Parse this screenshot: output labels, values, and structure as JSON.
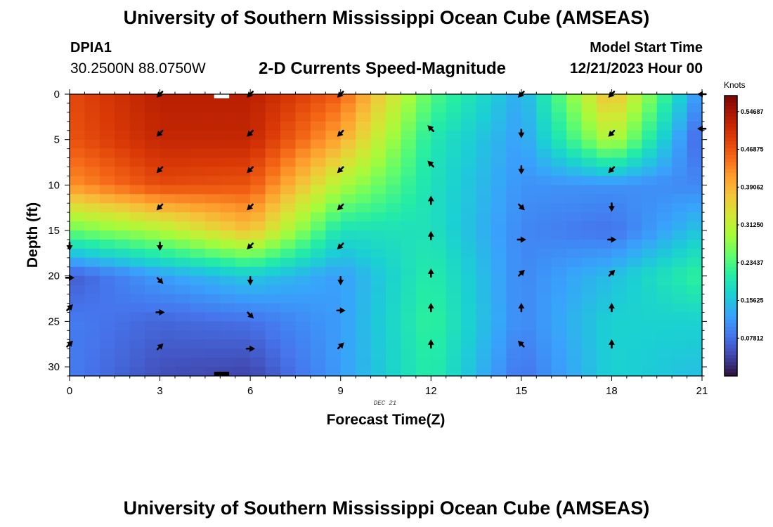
{
  "header": {
    "title": "University of Southern Mississippi Ocean Cube (AMSEAS)",
    "station": "DPIA1",
    "coords": "30.2500N  88.0750W",
    "subtitle": "2-D Currents Speed-Magnitude",
    "start_label": "Model Start Time",
    "start_value": "12/21/2023 Hour 00"
  },
  "footer": {
    "title": "University of Southern Mississippi Ocean Cube (AMSEAS)"
  },
  "chart_data": {
    "type": "heatmap",
    "title": "2-D Currents Speed-Magnitude",
    "xlabel": "Forecast Time(Z)",
    "ylabel": "Depth (ft)",
    "date_label": "DEC 21",
    "xlim": [
      0,
      21
    ],
    "ylim": [
      0,
      31
    ],
    "x_ticks": [
      0,
      3,
      6,
      9,
      12,
      15,
      18,
      21
    ],
    "y_ticks": [
      0,
      5,
      10,
      15,
      20,
      25,
      30
    ],
    "colorbar": {
      "units": "Knots",
      "range": [
        0.0,
        0.58
      ],
      "ticks": [
        "0.54687",
        "0.46875",
        "0.39062",
        "0.31250",
        "0.23437",
        "0.15625",
        "0.07812"
      ],
      "tick_values": [
        0.54687,
        0.46875,
        0.39062,
        0.3125,
        0.23437,
        0.15625,
        0.07812
      ],
      "colors": [
        "#30123b",
        "#4145ab",
        "#4675ed",
        "#39a2fc",
        "#1bcfd4",
        "#24eca6",
        "#61fc6c",
        "#a4fc3b",
        "#d1e834",
        "#f3c63a",
        "#fe9b2d",
        "#f36315",
        "#d93806",
        "#b11901",
        "#7a0403"
      ]
    },
    "x_times": [
      0,
      3,
      6,
      9,
      12,
      15,
      18,
      21
    ],
    "speed_profiles": [
      {
        "time": 0,
        "depths": [
          0,
          5,
          10,
          15,
          20,
          25,
          31
        ],
        "values": [
          0.48,
          0.47,
          0.42,
          0.25,
          0.06,
          0.09,
          0.09
        ]
      },
      {
        "time": 3,
        "depths": [
          0,
          5,
          10,
          15,
          20,
          25,
          31
        ],
        "values": [
          0.53,
          0.52,
          0.48,
          0.3,
          0.12,
          0.07,
          0.05
        ]
      },
      {
        "time": 6,
        "depths": [
          0,
          5,
          10,
          15,
          20,
          25,
          31
        ],
        "values": [
          0.53,
          0.52,
          0.47,
          0.38,
          0.16,
          0.08,
          0.04
        ]
      },
      {
        "time": 9,
        "depths": [
          0,
          5,
          10,
          15,
          20,
          25,
          31
        ],
        "values": [
          0.46,
          0.4,
          0.3,
          0.19,
          0.12,
          0.12,
          0.12
        ]
      },
      {
        "time": 12,
        "depths": [
          0,
          5,
          10,
          15,
          20,
          25,
          31
        ],
        "values": [
          0.24,
          0.2,
          0.19,
          0.19,
          0.21,
          0.22,
          0.21
        ]
      },
      {
        "time": 15,
        "depths": [
          0,
          5,
          10,
          15,
          20,
          25,
          31
        ],
        "values": [
          0.13,
          0.12,
          0.11,
          0.1,
          0.1,
          0.1,
          0.08
        ]
      },
      {
        "time": 18,
        "depths": [
          0,
          5,
          10,
          15,
          20,
          25,
          31
        ],
        "values": [
          0.39,
          0.31,
          0.11,
          0.08,
          0.15,
          0.17,
          0.17
        ]
      },
      {
        "time": 21,
        "depths": [
          0,
          5,
          10,
          15,
          20,
          25,
          31
        ],
        "values": [
          0.1,
          0.06,
          0.1,
          0.16,
          0.22,
          0.17,
          0.15
        ]
      }
    ],
    "arrows": [
      {
        "time": 0,
        "depth": 16.7,
        "dir": "S"
      },
      {
        "time": 0,
        "depth": 20.2,
        "dir": "E"
      },
      {
        "time": 0,
        "depth": 23.5,
        "dir": "NE"
      },
      {
        "time": 0,
        "depth": 27.5,
        "dir": "NE"
      },
      {
        "time": 3,
        "depth": 0.0,
        "dir": "SW"
      },
      {
        "time": 3,
        "depth": 4.3,
        "dir": "SW"
      },
      {
        "time": 3,
        "depth": 8.3,
        "dir": "SW"
      },
      {
        "time": 3,
        "depth": 12.4,
        "dir": "SW"
      },
      {
        "time": 3,
        "depth": 16.7,
        "dir": "S"
      },
      {
        "time": 3,
        "depth": 20.5,
        "dir": "SE"
      },
      {
        "time": 3,
        "depth": 24.0,
        "dir": "E"
      },
      {
        "time": 3,
        "depth": 27.8,
        "dir": "NE"
      },
      {
        "time": 6,
        "depth": 0.0,
        "dir": "SW"
      },
      {
        "time": 6,
        "depth": 4.3,
        "dir": "SW"
      },
      {
        "time": 6,
        "depth": 8.3,
        "dir": "SW"
      },
      {
        "time": 6,
        "depth": 12.4,
        "dir": "SW"
      },
      {
        "time": 6,
        "depth": 16.7,
        "dir": "SW"
      },
      {
        "time": 6,
        "depth": 20.5,
        "dir": "S"
      },
      {
        "time": 6,
        "depth": 24.3,
        "dir": "SE"
      },
      {
        "time": 6,
        "depth": 28.0,
        "dir": "E"
      },
      {
        "time": 9,
        "depth": 0.0,
        "dir": "SW"
      },
      {
        "time": 9,
        "depth": 4.3,
        "dir": "SW"
      },
      {
        "time": 9,
        "depth": 8.3,
        "dir": "SW"
      },
      {
        "time": 9,
        "depth": 12.4,
        "dir": "SW"
      },
      {
        "time": 9,
        "depth": 16.7,
        "dir": "SW"
      },
      {
        "time": 9,
        "depth": 20.5,
        "dir": "S"
      },
      {
        "time": 9,
        "depth": 23.8,
        "dir": "E"
      },
      {
        "time": 9,
        "depth": 27.7,
        "dir": "NE"
      },
      {
        "time": 12,
        "depth": 3.8,
        "dir": "NW"
      },
      {
        "time": 12,
        "depth": 7.7,
        "dir": "NW"
      },
      {
        "time": 12,
        "depth": 11.7,
        "dir": "N"
      },
      {
        "time": 12,
        "depth": 15.6,
        "dir": "N"
      },
      {
        "time": 12,
        "depth": 19.7,
        "dir": "N"
      },
      {
        "time": 12,
        "depth": 23.5,
        "dir": "N"
      },
      {
        "time": 12,
        "depth": 27.5,
        "dir": "N"
      },
      {
        "time": 15,
        "depth": 0.0,
        "dir": "SW"
      },
      {
        "time": 15,
        "depth": 4.3,
        "dir": "S"
      },
      {
        "time": 15,
        "depth": 8.3,
        "dir": "S"
      },
      {
        "time": 15,
        "depth": 12.4,
        "dir": "SE"
      },
      {
        "time": 15,
        "depth": 16.0,
        "dir": "E"
      },
      {
        "time": 15,
        "depth": 19.7,
        "dir": "NE"
      },
      {
        "time": 15,
        "depth": 23.5,
        "dir": "N"
      },
      {
        "time": 15,
        "depth": 27.5,
        "dir": "NW"
      },
      {
        "time": 18,
        "depth": 0.0,
        "dir": "SW"
      },
      {
        "time": 18,
        "depth": 4.3,
        "dir": "SW"
      },
      {
        "time": 18,
        "depth": 8.3,
        "dir": "SW"
      },
      {
        "time": 18,
        "depth": 12.4,
        "dir": "S"
      },
      {
        "time": 18,
        "depth": 16.0,
        "dir": "E"
      },
      {
        "time": 18,
        "depth": 19.7,
        "dir": "NE"
      },
      {
        "time": 18,
        "depth": 23.5,
        "dir": "N"
      },
      {
        "time": 18,
        "depth": 27.5,
        "dir": "N"
      },
      {
        "time": 21,
        "depth": 0.0,
        "dir": "W"
      },
      {
        "time": 21,
        "depth": 3.8,
        "dir": "W"
      }
    ]
  }
}
